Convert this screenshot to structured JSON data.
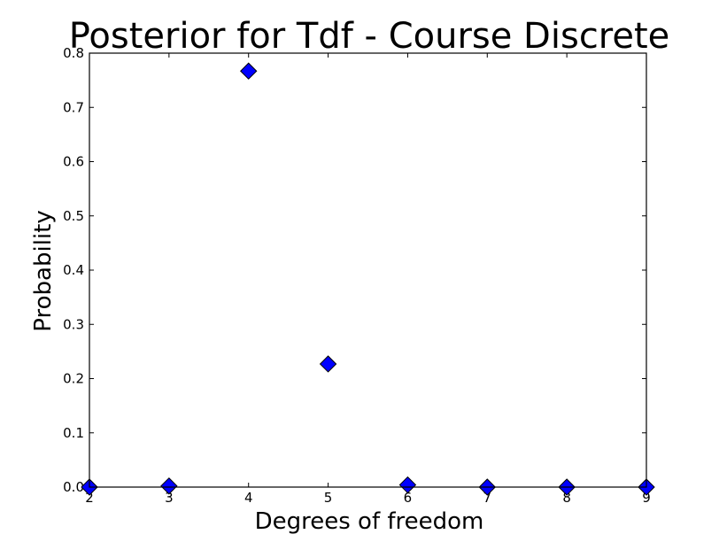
{
  "chart_data": {
    "type": "scatter",
    "title": "Posterior for Tdf - Course Discrete",
    "xlabel": "Degrees of freedom",
    "ylabel": "Probability",
    "xlim": [
      2,
      9
    ],
    "ylim": [
      0.0,
      0.8
    ],
    "xticks": [
      "2",
      "3",
      "4",
      "5",
      "6",
      "7",
      "8",
      "9"
    ],
    "yticks": [
      "0.0",
      "0.1",
      "0.2",
      "0.3",
      "0.4",
      "0.5",
      "0.6",
      "0.7",
      "0.8"
    ],
    "grid": false,
    "marker": "diamond",
    "marker_color": "#0000ff",
    "series": [
      {
        "x": [
          2,
          3,
          4,
          5,
          6,
          7,
          8,
          9
        ],
        "y": [
          0.0,
          0.002,
          0.767,
          0.227,
          0.004,
          0.0,
          0.0,
          0.0
        ]
      }
    ]
  }
}
